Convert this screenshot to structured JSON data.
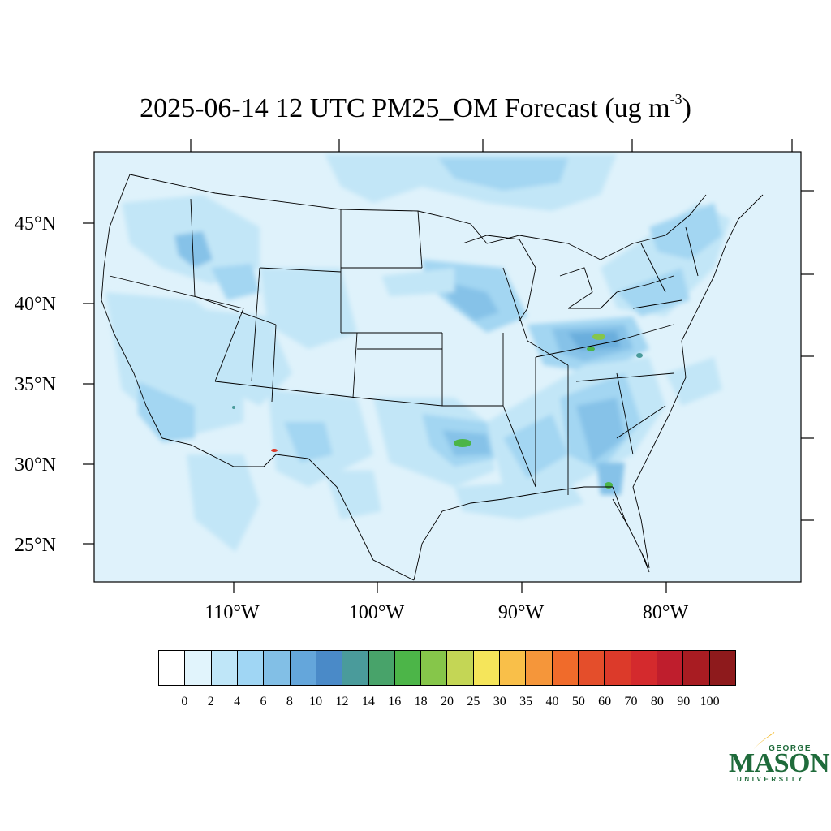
{
  "title": {
    "text": "2025-06-14 12 UTC PM25_OM Forecast (ug m",
    "superscript": "-3",
    "suffix": ")"
  },
  "map": {
    "background_color": "#dff2fb",
    "boundary_color": "#000000",
    "lat_labels": [
      "45°N",
      "40°N",
      "35°N",
      "30°N",
      "25°N"
    ],
    "lon_labels": [
      "110°W",
      "100°W",
      "90°W",
      "80°W"
    ]
  },
  "colorbar": {
    "colors": [
      "#ffffff",
      "#e1f4fc",
      "#bfe6f8",
      "#a0d6f4",
      "#82bfe6",
      "#64a6db",
      "#4a8ac8",
      "#4a9b9b",
      "#48a36a",
      "#4cb548",
      "#86c64a",
      "#c4d655",
      "#f5e55a",
      "#f9bf49",
      "#f5963a",
      "#f06b2b",
      "#e44e2b",
      "#dc3a2a",
      "#d42a2d",
      "#bf1e2d",
      "#a81c22",
      "#8e1a1c"
    ],
    "labels": [
      "0",
      "2",
      "4",
      "6",
      "8",
      "10",
      "12",
      "14",
      "16",
      "18",
      "20",
      "25",
      "30",
      "35",
      "40",
      "50",
      "60",
      "70",
      "80",
      "90",
      "100"
    ]
  },
  "logo": {
    "line1": "GEORGE",
    "line2": "MASON",
    "line3": "UNIVERSITY",
    "color": "#1f6b3b",
    "accent": "#f2b61e"
  }
}
